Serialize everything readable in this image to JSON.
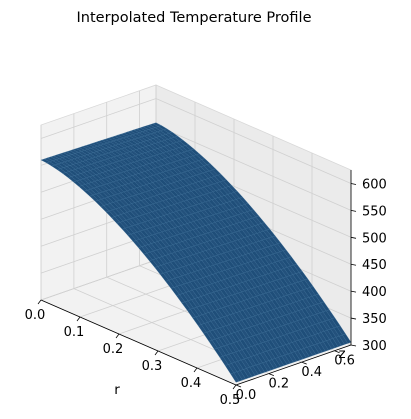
{
  "chart_data": {
    "type": "surface",
    "title": "Interpolated Temperature Profile",
    "xlabel": "r",
    "ylabel": "z",
    "zlabel": "",
    "xlim": [
      0.0,
      0.5
    ],
    "ylim": [
      0.0,
      0.7
    ],
    "zlim": [
      300,
      625
    ],
    "x_ticks": [
      "0.0",
      "0.1",
      "0.2",
      "0.3",
      "0.4",
      "0.5"
    ],
    "y_ticks": [
      "0.0",
      "0.2",
      "0.4",
      "0.6"
    ],
    "z_ticks": [
      "300",
      "350",
      "400",
      "450",
      "500",
      "550",
      "600"
    ],
    "grid": true,
    "surface_color": "#1f4e79",
    "surface_corners": [
      {
        "r": 0.0,
        "z": 0.0,
        "T": 560
      },
      {
        "r": 0.5,
        "z": 0.0,
        "T": 305
      },
      {
        "r": 0.0,
        "z": 0.7,
        "T": 555
      },
      {
        "r": 0.5,
        "z": 0.7,
        "T": 305
      }
    ]
  }
}
